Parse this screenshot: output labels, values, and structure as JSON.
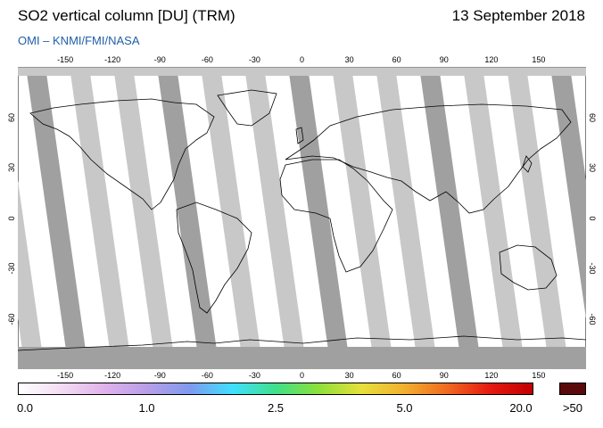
{
  "header": {
    "title": "SO2 vertical column [DU] (TRM)",
    "date": "13 September 2018",
    "source": "OMI  –  KNMI/FMI/NASA"
  },
  "axes": {
    "lon_top": [
      "-150",
      "-120",
      "-90",
      "-60",
      "-30",
      "0",
      "30",
      "60",
      "90",
      "120",
      "150"
    ],
    "lon_bottom": [
      "-150",
      "-120",
      "-90",
      "-60",
      "-30",
      "0",
      "30",
      "60",
      "90",
      "120",
      "150"
    ],
    "lat_left": [
      "60",
      "30",
      "0",
      "-30",
      "-60"
    ],
    "lat_right": [
      "60",
      "30",
      "0",
      "-30",
      "-60"
    ]
  },
  "colorbar": {
    "tick_labels": [
      "0.0",
      "1.0",
      "2.5",
      "5.0",
      "20.0"
    ],
    "over_label": ">50",
    "over_color": "#5a0a0a",
    "stops": [
      "#ffffff",
      "#f3dcf3",
      "#e0b2ec",
      "#b89ee8",
      "#7f9af0",
      "#3fe0ff",
      "#3fe08a",
      "#8ce03a",
      "#e6e03a",
      "#f2b030",
      "#f06a20",
      "#e61a10",
      "#c20000"
    ]
  },
  "map": {
    "ocean_color": "#ffffff",
    "no_data_color": "#c8c8c8",
    "overlap_color": "#a0a0a0"
  }
}
